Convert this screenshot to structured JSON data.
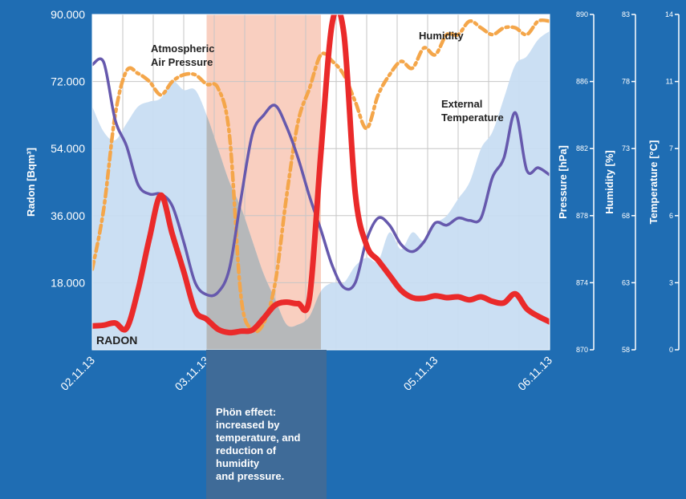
{
  "colors": {
    "background": "#1f6db3",
    "plot_bg": "#ffffff",
    "phon_band": "#f9cfc0",
    "phon_band_below": "#3f6b98",
    "temperature_fill": "#c8ddf2",
    "pressure_fill": "#b4b4b4",
    "radon": "#ea2a2a",
    "humidity": "#f4a64a",
    "temperature_line": "#6659ad",
    "grid": "#c6c6c6"
  },
  "annotation": "Phön effect:\nincreased by\ntemperature, and\nreduction of\nhumidity\nand pressure.",
  "chart_data": {
    "type": "line",
    "x": [
      0,
      0.1,
      0.2,
      0.3,
      0.4,
      0.5,
      0.6,
      0.7,
      0.8,
      0.9,
      1,
      1.1,
      1.2,
      1.3,
      1.4,
      1.5,
      1.6,
      1.7,
      1.8,
      1.9,
      2,
      2.1,
      2.2,
      2.3,
      2.4,
      2.5,
      2.6,
      2.7,
      2.8,
      2.9,
      3,
      3.1,
      3.2,
      3.3,
      3.4,
      3.5,
      3.6,
      3.7,
      3.8,
      3.9,
      4
    ],
    "x_tick_labels": [
      "02.11.13",
      "03.11.13",
      "04.11.13",
      "05.11.13",
      "06.11.13"
    ],
    "x_tick_values": [
      0,
      1,
      2,
      3,
      4
    ],
    "highlight_range": [
      1,
      2
    ],
    "axes": [
      {
        "name": "Radon [Bqm³]",
        "ylim": [
          0,
          90000
        ],
        "ticks": [
          "18.000",
          "36.000",
          "54.000",
          "72.000",
          "90.000"
        ],
        "tick_values": [
          18000,
          36000,
          54000,
          72000,
          90000
        ]
      },
      {
        "name": "Pressure [hPa]",
        "ylim": [
          870,
          890
        ],
        "ticks": [
          "870",
          "874",
          "878",
          "882",
          "886",
          "890"
        ]
      },
      {
        "name": "Humidity [%]",
        "ylim": [
          58,
          83
        ],
        "ticks": [
          "58",
          "63",
          "68",
          "73",
          "78",
          "83"
        ]
      },
      {
        "name": "Temperature [°C]",
        "ylim": [
          0,
          14
        ],
        "ticks": [
          "0",
          "3",
          "6",
          "7",
          "11",
          "14"
        ]
      }
    ],
    "series": [
      {
        "name": "RADON",
        "axis": 0,
        "style": "line",
        "values": [
          6400,
          6600,
          7200,
          5800,
          16000,
          30000,
          41500,
          31000,
          21000,
          10500,
          8200,
          5500,
          4600,
          5000,
          5300,
          8500,
          12000,
          12800,
          12400,
          14000,
          53000,
          88000,
          85000,
          42000,
          28000,
          24000,
          20000,
          16000,
          14000,
          13800,
          14500,
          14000,
          14200,
          13400,
          14200,
          13000,
          12600,
          15000,
          11000,
          9000,
          7500
        ]
      },
      {
        "name": "Atmospheric Air Pressure",
        "axis": 1,
        "style": "area",
        "values": [
          884.5,
          883,
          882.5,
          883.5,
          884.5,
          884.8,
          885,
          886,
          885.5,
          885.5,
          884,
          882,
          880,
          878.5,
          876.5,
          874.5,
          873,
          871.5,
          871.5,
          872,
          873.5,
          874,
          874,
          875,
          875.5,
          875.3,
          877,
          876,
          877,
          876.5,
          877.5,
          878,
          879,
          880,
          882,
          883,
          885,
          887,
          887.5,
          888.5,
          889
        ]
      },
      {
        "name": "Humidity",
        "axis": 2,
        "style": "dashed",
        "values": [
          64,
          68.5,
          75.5,
          78.8,
          78.6,
          78,
          77,
          78,
          78.5,
          78.5,
          77.8,
          77.5,
          74,
          62,
          59.5,
          60,
          63,
          69.5,
          75,
          77.5,
          80,
          79.5,
          78.5,
          76.5,
          74.5,
          77,
          78.5,
          79.5,
          79,
          80.5,
          80,
          81.5,
          81.5,
          82.5,
          82,
          81.5,
          82,
          82,
          81.5,
          82.5,
          82.5
        ]
      },
      {
        "name": "External Temperature",
        "axis": 3,
        "style": "line",
        "values": [
          11.9,
          12.0,
          9.6,
          8.5,
          6.9,
          6.5,
          6.5,
          6.0,
          4.5,
          2.8,
          2.3,
          2.4,
          3.4,
          6.3,
          9.0,
          9.8,
          10.2,
          9.3,
          8.0,
          6.4,
          5.0,
          3.5,
          2.6,
          2.8,
          4.6,
          5.5,
          5.2,
          4.4,
          4.1,
          4.5,
          5.3,
          5.2,
          5.5,
          5.4,
          5.5,
          7.2,
          8.0,
          9.9,
          7.5,
          7.6,
          7.3
        ]
      }
    ]
  },
  "labels": {
    "pressure_series": "Atmospheric\nAir Pressure",
    "humidity_series": "Humidity",
    "temperature_series": "External\nTemperature",
    "radon_series": "RADON"
  }
}
